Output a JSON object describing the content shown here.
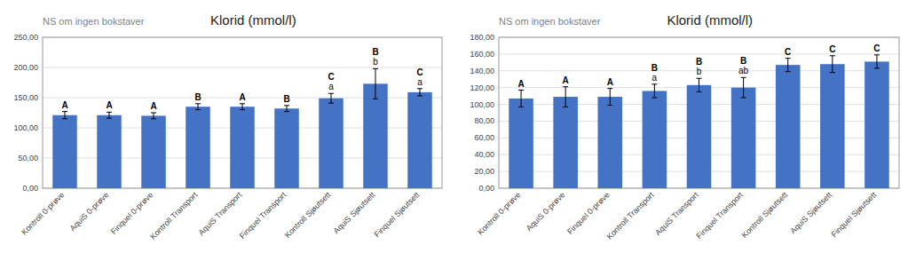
{
  "chart_data": [
    {
      "type": "bar",
      "title": "Klorid (mmol/l)",
      "subtitle": "NS om ingen bokstaver",
      "categories": [
        "Kontroll 0-prøve",
        "AquiS 0-prøve",
        "Finquel 0-prøve",
        "Kontroll Transport",
        "AquiS Transport",
        "Finquel Transport",
        "Kontroll Sjøutsett",
        "AquiS Sjøutsett",
        "Finquel Sjøutsett"
      ],
      "values": [
        121,
        121,
        120,
        135,
        135,
        132,
        149,
        173,
        159
      ],
      "errors": [
        6,
        5,
        5,
        5,
        5,
        5,
        8,
        25,
        6
      ],
      "annotations": [
        [
          "A"
        ],
        [
          "A"
        ],
        [
          "A"
        ],
        [
          "B"
        ],
        [
          "A"
        ],
        [
          "B"
        ],
        [
          "C",
          "a"
        ],
        [
          "B",
          "b"
        ],
        [
          "C",
          "a"
        ]
      ],
      "color": "#4472C4",
      "ylim": [
        0,
        250
      ],
      "yticks": [
        {
          "value": 0,
          "label": "0,00"
        },
        {
          "value": 50,
          "label": "50,00"
        },
        {
          "value": 100,
          "label": "100,00"
        },
        {
          "value": 150,
          "label": "150,00"
        },
        {
          "value": 200,
          "label": "200,00"
        },
        {
          "value": 250,
          "label": "250,00"
        }
      ],
      "grid": true
    },
    {
      "type": "bar",
      "title": "Klorid (mmol/l)",
      "subtitle": "NS om ingen bokstaver",
      "categories": [
        "Kontroll 0-prøve",
        "AquiS 0-prøve",
        "Finquel 0-prøve",
        "Kontroll Transport",
        "AquiS Transport",
        "Finquel Transport",
        "Kontroll Sjøutsett",
        "AquiS Sjøutsett",
        "Finquel Sjøutsett"
      ],
      "values": [
        107,
        109,
        109,
        116,
        123,
        120,
        147,
        148,
        151
      ],
      "errors": [
        10,
        12,
        10,
        8,
        8,
        12,
        8,
        10,
        8
      ],
      "annotations": [
        [
          "A"
        ],
        [
          "A"
        ],
        [
          "A"
        ],
        [
          "B",
          "a"
        ],
        [
          "B",
          "b"
        ],
        [
          "B",
          "ab"
        ],
        [
          "C"
        ],
        [
          "C"
        ],
        [
          "C"
        ]
      ],
      "color": "#4472C4",
      "ylim": [
        0,
        180
      ],
      "yticks": [
        {
          "value": 0,
          "label": "0,00"
        },
        {
          "value": 20,
          "label": "20,00"
        },
        {
          "value": 40,
          "label": "40,00"
        },
        {
          "value": 60,
          "label": "60,00"
        },
        {
          "value": 80,
          "label": "80,00"
        },
        {
          "value": 100,
          "label": "100,00"
        },
        {
          "value": 120,
          "label": "120,00"
        },
        {
          "value": 140,
          "label": "140,00"
        },
        {
          "value": 160,
          "label": "160,00"
        },
        {
          "value": 180,
          "label": "180,00"
        }
      ],
      "grid": true
    }
  ]
}
